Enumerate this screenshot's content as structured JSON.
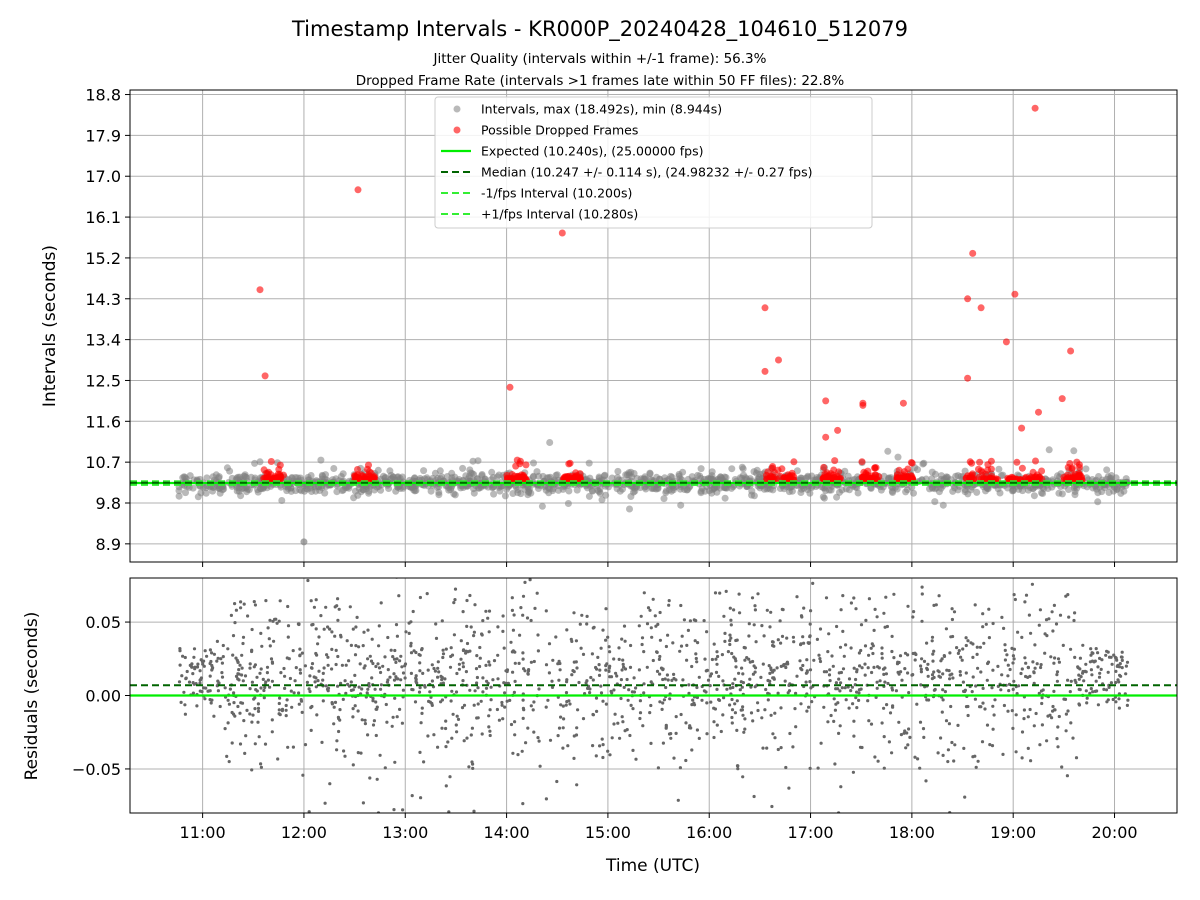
{
  "title": "Timestamp Intervals - KR000P_20240428_104610_512079",
  "subtitle_1": "Jitter Quality (intervals within +/-1 frame): 56.3%",
  "subtitle_2": "Dropped Frame Rate (intervals >1 frames late within 50 FF files): 22.8%",
  "colors": {
    "intervals": "#808080",
    "dropped": "#ff0000",
    "expected": "#00ee00",
    "median": "#006400",
    "bounds": "#33ee33",
    "residuals": "#666666",
    "grid": "#b0b0b0"
  },
  "chart_data": [
    {
      "type": "scatter",
      "ylabel": "Intervals (seconds)",
      "ylim": [
        8.5,
        18.9
      ],
      "xlim": [
        "10:17",
        "20:37"
      ],
      "yticks": [
        "8.9",
        "9.8",
        "10.7",
        "11.6",
        "12.5",
        "13.4",
        "14.3",
        "15.2",
        "16.1",
        "17.0",
        "17.9",
        "18.8"
      ],
      "grid": true,
      "legend_position": "upper-center",
      "legend": [
        {
          "label": "Intervals, max (18.492s), min (8.944s)",
          "kind": "gray-dot"
        },
        {
          "label": "Possible Dropped Frames",
          "kind": "red-dot"
        },
        {
          "label": "Expected (10.240s), (25.00000 fps)",
          "kind": "solid-bright-green"
        },
        {
          "label": "Median (10.247 +/- 0.114 s), (24.98232 +/- 0.27 fps)",
          "kind": "dashed-dark-green"
        },
        {
          "label": "-1/fps Interval (10.200s)",
          "kind": "dashed-bright-green"
        },
        {
          "label": "+1/fps Interval (10.280s)",
          "kind": "dashed-bright-green"
        }
      ],
      "reference_lines": {
        "expected": 10.24,
        "median": 10.247,
        "minus_1fps": 10.2,
        "plus_1fps": 10.28
      },
      "series": [
        {
          "name": "Intervals",
          "x_range": [
            "10:46",
            "20:08"
          ],
          "y_center": 10.24,
          "y_range": [
            8.944,
            18.492
          ],
          "points": "dense band, about 1400 points"
        },
        {
          "name": "Possible Dropped Frames",
          "clusters": [
            {
              "x": "11:36",
              "x_end": "11:48"
            },
            {
              "x": "12:30",
              "x_end": "12:42"
            },
            {
              "x": "14:00",
              "x_end": "14:12"
            },
            {
              "x": "14:33",
              "x_end": "14:44"
            },
            {
              "x": "16:33",
              "x_end": "16:51"
            },
            {
              "x": "17:07",
              "x_end": "17:18"
            },
            {
              "x": "17:30",
              "x_end": "17:41"
            },
            {
              "x": "17:51",
              "x_end": "18:01"
            },
            {
              "x": "18:32",
              "x_end": "18:51"
            },
            {
              "x": "18:55",
              "x_end": "19:17"
            },
            {
              "x": "19:30",
              "x_end": "19:41"
            }
          ],
          "outliers": [
            {
              "x": "11:34",
              "y": 14.5
            },
            {
              "x": "11:37",
              "y": 12.6
            },
            {
              "x": "12:32",
              "y": 16.7
            },
            {
              "x": "14:02",
              "y": 12.35
            },
            {
              "x": "14:33",
              "y": 15.75
            },
            {
              "x": "16:33",
              "y": 14.1
            },
            {
              "x": "16:33",
              "y": 12.7
            },
            {
              "x": "16:41",
              "y": 12.95
            },
            {
              "x": "17:09",
              "y": 12.05
            },
            {
              "x": "17:09",
              "y": 11.25
            },
            {
              "x": "17:16",
              "y": 11.4
            },
            {
              "x": "17:31",
              "y": 12.0
            },
            {
              "x": "17:31",
              "y": 11.95
            },
            {
              "x": "17:55",
              "y": 12.0
            },
            {
              "x": "18:33",
              "y": 14.3
            },
            {
              "x": "18:36",
              "y": 15.3
            },
            {
              "x": "18:33",
              "y": 12.55
            },
            {
              "x": "18:41",
              "y": 14.1
            },
            {
              "x": "18:56",
              "y": 13.35
            },
            {
              "x": "19:01",
              "y": 14.4
            },
            {
              "x": "19:13",
              "y": 18.5
            },
            {
              "x": "19:05",
              "y": 11.45
            },
            {
              "x": "19:15",
              "y": 11.8
            },
            {
              "x": "19:29",
              "y": 12.1
            },
            {
              "x": "19:34",
              "y": 13.15
            }
          ]
        }
      ]
    },
    {
      "type": "scatter",
      "ylabel": "Residuals (seconds)",
      "xlabel": "Time (UTC)",
      "ylim": [
        -0.08,
        0.08
      ],
      "xlim": [
        "10:17",
        "20:37"
      ],
      "yticks": [
        "−0.05",
        "0.00",
        "0.05"
      ],
      "xticks": [
        "11:00",
        "12:00",
        "13:00",
        "14:00",
        "15:00",
        "16:00",
        "17:00",
        "18:00",
        "19:00",
        "20:00"
      ],
      "grid": true,
      "reference_lines": {
        "zero": 0.0,
        "median_offset": 0.007
      },
      "series": [
        {
          "name": "Residuals",
          "x_range": [
            "10:46",
            "20:08"
          ],
          "y_range": [
            -0.08,
            0.08
          ],
          "points": "about 1800 points, concentrated near 0.00 to 0.02"
        }
      ]
    }
  ]
}
